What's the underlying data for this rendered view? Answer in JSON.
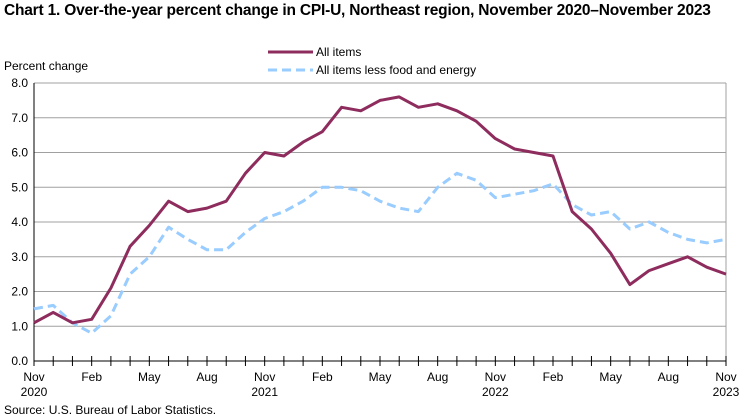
{
  "chart_data": {
    "type": "line",
    "title": "Chart 1. Over-the-year percent change in CPI-U, Northeast region, November 2020–November 2023",
    "ylabel": "Percent change",
    "xlabel": "",
    "ylim": [
      0,
      8
    ],
    "yticks": [
      "0.0",
      "1.0",
      "2.0",
      "3.0",
      "4.0",
      "5.0",
      "6.0",
      "7.0",
      "8.0"
    ],
    "grid": true,
    "legend_position": "top-center",
    "xticks": [
      {
        "index": 0,
        "label": "Nov",
        "year": "2020"
      },
      {
        "index": 3,
        "label": "Feb",
        "year": ""
      },
      {
        "index": 6,
        "label": "May",
        "year": ""
      },
      {
        "index": 9,
        "label": "Aug",
        "year": ""
      },
      {
        "index": 12,
        "label": "Nov",
        "year": "2021"
      },
      {
        "index": 15,
        "label": "Feb",
        "year": ""
      },
      {
        "index": 18,
        "label": "May",
        "year": ""
      },
      {
        "index": 21,
        "label": "Aug",
        "year": ""
      },
      {
        "index": 24,
        "label": "Nov",
        "year": "2022"
      },
      {
        "index": 27,
        "label": "Feb",
        "year": ""
      },
      {
        "index": 30,
        "label": "May",
        "year": ""
      },
      {
        "index": 33,
        "label": "Aug",
        "year": ""
      },
      {
        "index": 36,
        "label": "Nov",
        "year": "2023"
      }
    ],
    "x": [
      "Nov 2020",
      "Dec 2020",
      "Jan 2021",
      "Feb 2021",
      "Mar 2021",
      "Apr 2021",
      "May 2021",
      "Jun 2021",
      "Jul 2021",
      "Aug 2021",
      "Sep 2021",
      "Oct 2021",
      "Nov 2021",
      "Dec 2021",
      "Jan 2022",
      "Feb 2022",
      "Mar 2022",
      "Apr 2022",
      "May 2022",
      "Jun 2022",
      "Jul 2022",
      "Aug 2022",
      "Sep 2022",
      "Oct 2022",
      "Nov 2022",
      "Dec 2022",
      "Jan 2023",
      "Feb 2023",
      "Mar 2023",
      "Apr 2023",
      "May 2023",
      "Jun 2023",
      "Jul 2023",
      "Aug 2023",
      "Sep 2023",
      "Oct 2023",
      "Nov 2023"
    ],
    "series": [
      {
        "name": "All items",
        "color": "#8E2C5E",
        "style": "solid",
        "values": [
          1.1,
          1.4,
          1.1,
          1.2,
          2.1,
          3.3,
          3.9,
          4.6,
          4.3,
          4.4,
          4.6,
          5.4,
          6.0,
          5.9,
          6.3,
          6.6,
          7.3,
          7.2,
          7.5,
          7.6,
          7.3,
          7.4,
          7.2,
          6.9,
          6.4,
          6.1,
          6.0,
          5.9,
          4.3,
          3.8,
          3.1,
          2.2,
          2.6,
          2.8,
          3.0,
          2.7,
          2.5
        ]
      },
      {
        "name": "All items less food and energy",
        "color": "#99CCFF",
        "style": "dashed",
        "values": [
          1.5,
          1.6,
          1.1,
          0.8,
          1.3,
          2.5,
          3.0,
          3.85,
          3.5,
          3.2,
          3.2,
          3.7,
          4.1,
          4.3,
          4.6,
          5.0,
          5.0,
          4.9,
          4.6,
          4.4,
          4.3,
          5.0,
          5.4,
          5.2,
          4.7,
          4.8,
          4.9,
          5.1,
          4.5,
          4.2,
          4.3,
          3.8,
          4.0,
          3.7,
          3.5,
          3.4,
          3.5
        ]
      }
    ]
  },
  "source": "Source: U.S. Bureau of Labor Statistics."
}
